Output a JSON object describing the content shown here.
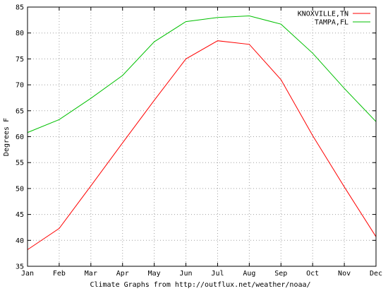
{
  "chart_data": {
    "type": "line",
    "categories": [
      "Jan",
      "Feb",
      "Mar",
      "Apr",
      "May",
      "Jun",
      "Jul",
      "Aug",
      "Sep",
      "Oct",
      "Nov",
      "Dec"
    ],
    "series": [
      {
        "name": "KNOXVILLE,TN",
        "color": "#ff0000",
        "values": [
          38.2,
          42.3,
          50.5,
          58.8,
          67.0,
          75.0,
          78.5,
          77.8,
          71.0,
          60.2,
          50.3,
          40.7
        ]
      },
      {
        "name": "TAMPA,FL",
        "color": "#00c000",
        "values": [
          60.8,
          63.3,
          67.4,
          71.8,
          78.3,
          82.2,
          83.0,
          83.3,
          81.7,
          76.1,
          69.3,
          62.9
        ]
      }
    ],
    "ylabel": "Degrees F",
    "xlabel": "Climate Graphs from http://outflux.net/weather/noaa/",
    "ylim": [
      35,
      85
    ],
    "yticks": [
      35,
      40,
      45,
      50,
      55,
      60,
      65,
      70,
      75,
      80,
      85
    ],
    "grid": true,
    "legend_position": "top-right"
  }
}
